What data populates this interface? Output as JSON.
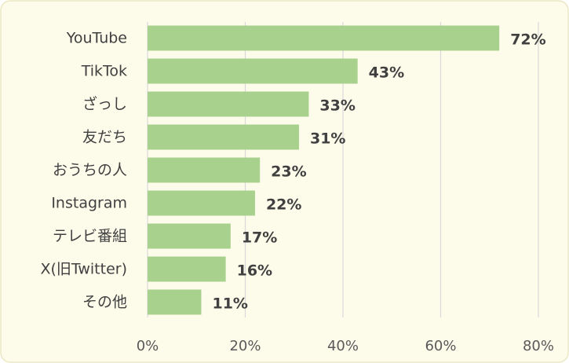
{
  "chart_data": {
    "type": "bar",
    "orientation": "horizontal",
    "categories": [
      "YouTube",
      "TikTok",
      "ざっし",
      "友だち",
      "おうちの人",
      "Instagram",
      "テレビ番組",
      "X(旧Twitter)",
      "その他"
    ],
    "values": [
      72,
      43,
      33,
      31,
      23,
      22,
      17,
      16,
      11
    ],
    "value_labels": [
      "72%",
      "43%",
      "33%",
      "31%",
      "23%",
      "22%",
      "17%",
      "16%",
      "11%"
    ],
    "x_ticks": [
      0,
      20,
      40,
      60,
      80
    ],
    "x_tick_labels": [
      "0%",
      "20%",
      "40%",
      "60%",
      "80%"
    ],
    "xlim": [
      0,
      80
    ],
    "grid": "vertical",
    "colors": {
      "bar": "#a9d18e",
      "background": "#fdfbea",
      "border": "#ece8c4",
      "grid": "#d9d9d9",
      "text": "#404040"
    }
  }
}
